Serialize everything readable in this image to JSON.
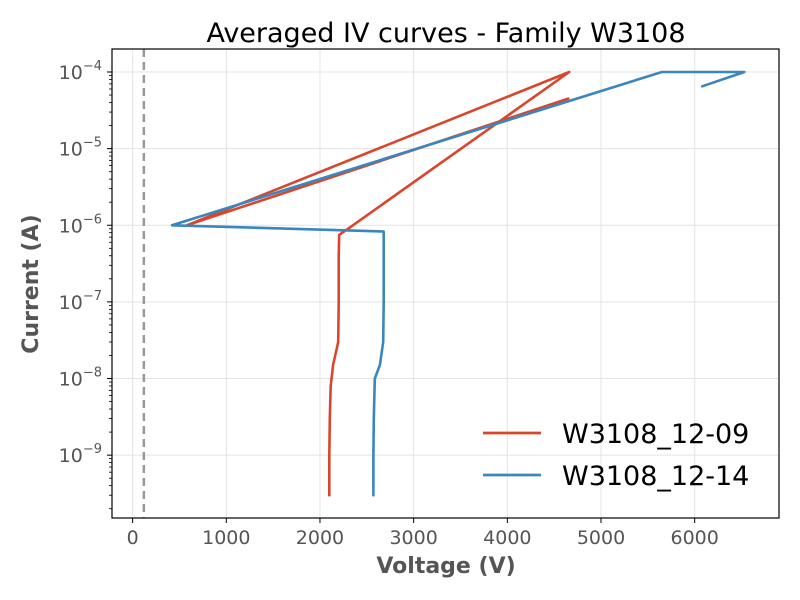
{
  "chart_data": {
    "type": "line",
    "title": "Averaged IV curves - Family W3108",
    "xlabel": "Voltage (V)",
    "ylabel": "Current (A)",
    "xlim": [
      -220,
      6900
    ],
    "ylim_log10": [
      -9.82,
      -3.7
    ],
    "y_scale": "log",
    "grid": true,
    "legend_position": "lower-right",
    "x_ticks": [
      {
        "value": 0,
        "label": "0"
      },
      {
        "value": 1000,
        "label": "1000"
      },
      {
        "value": 2000,
        "label": "2000"
      },
      {
        "value": 3000,
        "label": "3000"
      },
      {
        "value": 4000,
        "label": "4000"
      },
      {
        "value": 5000,
        "label": "5000"
      },
      {
        "value": 6000,
        "label": "6000"
      }
    ],
    "y_ticks": [
      {
        "exp": -9,
        "base": "10",
        "sup": "−9"
      },
      {
        "exp": -8,
        "base": "10",
        "sup": "−8"
      },
      {
        "exp": -7,
        "base": "10",
        "sup": "−7"
      },
      {
        "exp": -6,
        "base": "10",
        "sup": "−6"
      },
      {
        "exp": -5,
        "base": "10",
        "sup": "−5"
      },
      {
        "exp": -4,
        "base": "10",
        "sup": "−4"
      }
    ],
    "reference_line": {
      "x": 120,
      "color": "#999999",
      "style": "dashed"
    },
    "series": [
      {
        "name": "W3108_12-09",
        "color": "#d9462e",
        "points": [
          [
            2100,
            3e-10
          ],
          [
            2100,
            1e-09
          ],
          [
            2105,
            3e-09
          ],
          [
            2115,
            8e-09
          ],
          [
            2140,
            1.5e-08
          ],
          [
            2195,
            3e-08
          ],
          [
            2200,
            1e-07
          ],
          [
            2200,
            4e-07
          ],
          [
            2205,
            7.5e-07
          ],
          [
            2270,
            8.5e-07
          ],
          [
            4660,
            0.0001
          ],
          [
            580,
            1e-06
          ],
          [
            4650,
            4.5e-05
          ]
        ]
      },
      {
        "name": "W3108_12-14",
        "color": "#3a86bd",
        "points": [
          [
            2570,
            3e-10
          ],
          [
            2570,
            1e-09
          ],
          [
            2575,
            3e-09
          ],
          [
            2585,
            1e-08
          ],
          [
            2640,
            1.5e-08
          ],
          [
            2675,
            3e-08
          ],
          [
            2680,
            1e-07
          ],
          [
            2680,
            8.3e-07
          ],
          [
            420,
            1e-06
          ],
          [
            5650,
            0.0001
          ],
          [
            6530,
            0.0001
          ],
          [
            6080,
            6.5e-05
          ]
        ]
      }
    ]
  }
}
